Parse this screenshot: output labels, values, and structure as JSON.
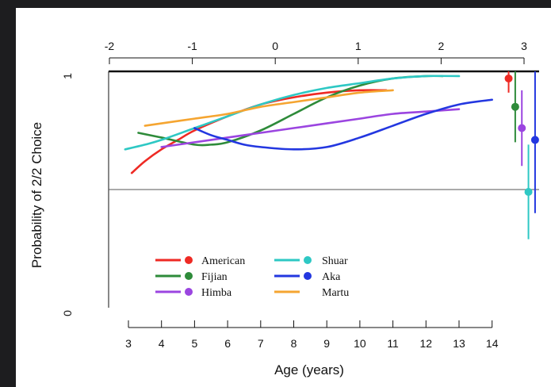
{
  "chart_data": {
    "type": "line",
    "xlabel": "Age (years)",
    "ylabel": "Probability of 2/2 Choice",
    "x_ticks": [
      "3",
      "4",
      "5",
      "6",
      "7",
      "8",
      "9",
      "10",
      "11",
      "12",
      "13",
      "14"
    ],
    "x2_ticks": [
      "-2",
      "-1",
      "0",
      "1",
      "2",
      "3"
    ],
    "y_ticks": [
      "0",
      "1"
    ],
    "xlim": [
      2.6,
      14.6
    ],
    "ylim": [
      0,
      1
    ],
    "reference_line_y": 0.5,
    "series": [
      {
        "name": "American",
        "color": "#ee2a24",
        "x": [
          3.1,
          3.5,
          4,
          4.5,
          5,
          6,
          7,
          8,
          9,
          10,
          10.8
        ],
        "y": [
          0.57,
          0.62,
          0.67,
          0.71,
          0.75,
          0.81,
          0.86,
          0.89,
          0.91,
          0.92,
          0.92
        ],
        "point": {
          "x": 14.5,
          "y": 0.97,
          "lo": 0.91,
          "hi": 1.0
        }
      },
      {
        "name": "Fijian",
        "color": "#2e8b3a",
        "x": [
          3.3,
          4,
          5,
          5.5,
          6,
          7,
          8,
          9,
          10,
          11,
          12,
          12.5
        ],
        "y": [
          0.74,
          0.72,
          0.69,
          0.69,
          0.7,
          0.75,
          0.82,
          0.89,
          0.94,
          0.97,
          0.98,
          0.98
        ],
        "point": {
          "x": 14.7,
          "y": 0.85,
          "lo": 0.7,
          "hi": 1.0
        }
      },
      {
        "name": "Himba",
        "color": "#9b45e0",
        "x": [
          4,
          5,
          6,
          7,
          8,
          9,
          10,
          11,
          12,
          13
        ],
        "y": [
          0.68,
          0.7,
          0.72,
          0.74,
          0.76,
          0.78,
          0.8,
          0.82,
          0.83,
          0.84
        ],
        "point": {
          "x": 14.9,
          "y": 0.76,
          "lo": 0.6,
          "hi": 0.92
        }
      },
      {
        "name": "Shuar",
        "color": "#2ec8c4",
        "x": [
          2.9,
          3.5,
          4,
          5,
          6,
          7,
          8,
          9,
          10,
          11,
          12,
          13
        ],
        "y": [
          0.67,
          0.69,
          0.71,
          0.76,
          0.81,
          0.86,
          0.9,
          0.93,
          0.95,
          0.97,
          0.98,
          0.98
        ],
        "point": {
          "x": 15.1,
          "y": 0.49,
          "lo": 0.29,
          "hi": 0.69
        }
      },
      {
        "name": "Aka",
        "color": "#2337e0",
        "x": [
          5,
          5.5,
          6,
          6.5,
          7,
          8,
          9,
          10,
          11,
          12,
          13,
          14
        ],
        "y": [
          0.76,
          0.73,
          0.71,
          0.69,
          0.68,
          0.67,
          0.68,
          0.72,
          0.77,
          0.82,
          0.86,
          0.88
        ],
        "point": {
          "x": 15.3,
          "y": 0.71,
          "lo": 0.4,
          "hi": 1.0
        }
      },
      {
        "name": "Martu",
        "color": "#f5a531",
        "x": [
          3.5,
          4,
          5,
          6,
          7,
          8,
          9,
          10,
          11
        ],
        "y": [
          0.77,
          0.78,
          0.8,
          0.82,
          0.85,
          0.87,
          0.89,
          0.91,
          0.92
        ],
        "point": null
      }
    ]
  }
}
